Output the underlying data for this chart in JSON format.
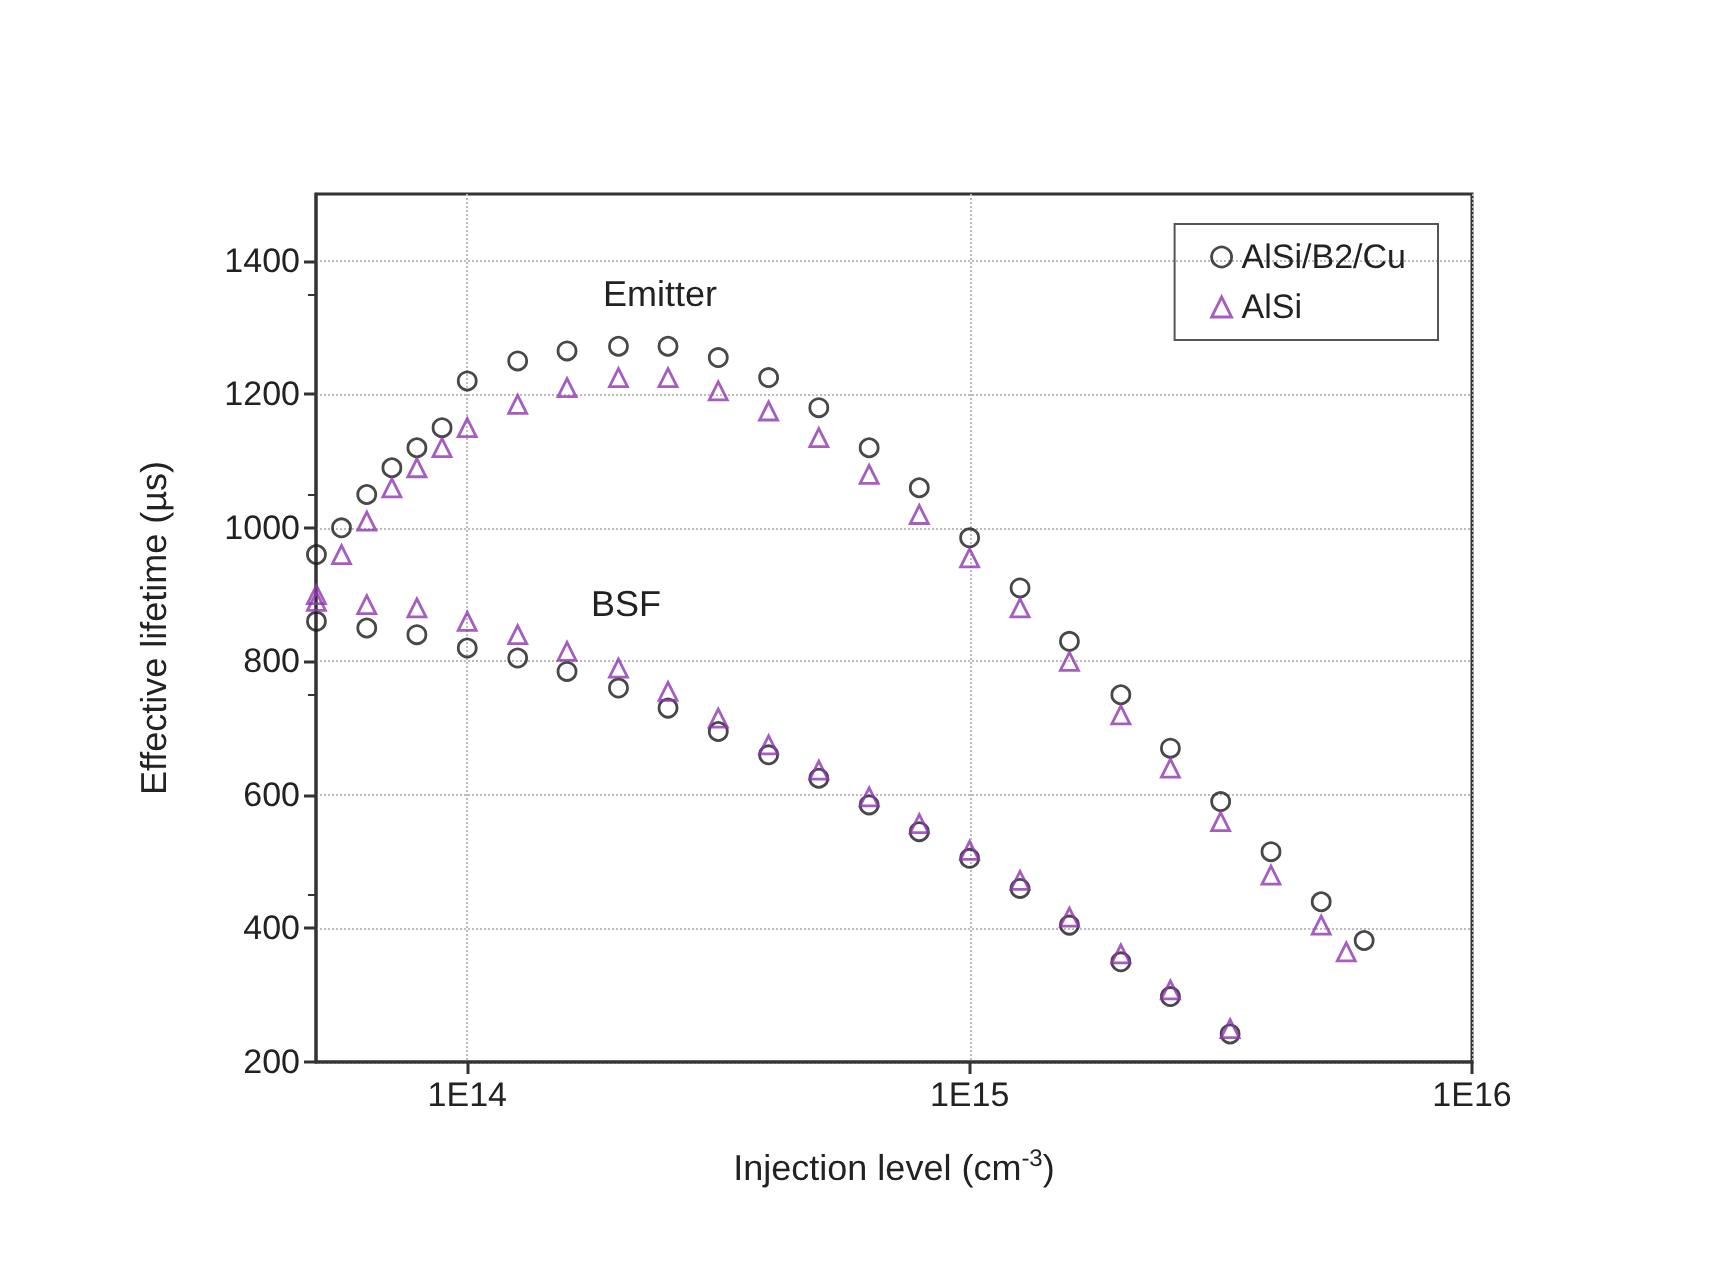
{
  "chart_data": {
    "type": "scatter",
    "xlabel": "Injection level (cm$^{-3}$)",
    "ylabel": "Effective lifetime (µs)",
    "log": "x",
    "xlim": [
      50000000000000.0,
      1e+16
    ],
    "xticks": [
      {
        "value": 100000000000000.0,
        "label": "1E14"
      },
      {
        "value": 1000000000000000.0,
        "label": "1E15"
      },
      {
        "value": 1e+16,
        "label": "1E16"
      }
    ],
    "ylim": [
      200,
      1500
    ],
    "yticks": [
      200,
      400,
      600,
      800,
      1000,
      1200,
      1400
    ],
    "grid": true,
    "legend": "top right",
    "annotations": [
      "Emitter",
      "BSF"
    ],
    "series": [
      {
        "name": "AlSi/B2/Cu",
        "color": "#1a1a1a",
        "marker": "circle",
        "x": [
          50100000000000.0,
          56200000000000.0,
          63100000000000.0,
          70800000000000.0,
          79400000000000.0,
          89100000000000.0,
          100000000000000.0,
          126000000000000.0,
          158000000000000.0,
          200000000000000.0,
          251000000000000.0,
          316000000000000.0,
          398000000000000.0,
          501000000000000.0,
          631000000000000.0,
          794000000000000.0,
          1000000000000000.0,
          1260000000000000.0,
          1580000000000000.0,
          2000000000000000.0,
          2510000000000000.0,
          3160000000000000.0,
          3980000000000000.0,
          5010000000000000.0,
          6100000000000000.0
        ],
        "values": [
          960,
          1000,
          1050,
          1090,
          1120,
          1150,
          1220,
          1250,
          1265,
          1272,
          1272,
          1255,
          1225,
          1180,
          1120,
          1060,
          985,
          910,
          830,
          750,
          670,
          590,
          515,
          440,
          382
        ]
      },
      {
        "name": "AlSi",
        "color": "#8e35b0",
        "marker": "triangle",
        "x": [
          50100000000000.0,
          56200000000000.0,
          63100000000000.0,
          70800000000000.0,
          79400000000000.0,
          89100000000000.0,
          100000000000000.0,
          126000000000000.0,
          158000000000000.0,
          200000000000000.0,
          251000000000000.0,
          316000000000000.0,
          398000000000000.0,
          501000000000000.0,
          631000000000000.0,
          794000000000000.0,
          1000000000000000.0,
          1260000000000000.0,
          1580000000000000.0,
          2000000000000000.0,
          2510000000000000.0,
          3160000000000000.0,
          3980000000000000.0,
          5010000000000000.0,
          5620000000000000.0
        ],
        "values": [
          900,
          960,
          1010,
          1060,
          1090,
          1120,
          1150,
          1185,
          1210,
          1225,
          1225,
          1205,
          1175,
          1135,
          1080,
          1020,
          955,
          880,
          800,
          720,
          640,
          560,
          480,
          405,
          365
        ]
      },
      {
        "color": "#1a1a1a",
        "marker": "circle",
        "x": [
          50100000000000.0,
          63100000000000.0,
          79400000000000.0,
          100000000000000.0,
          126000000000000.0,
          158000000000000.0,
          200000000000000.0,
          251000000000000.0,
          316000000000000.0,
          398000000000000.0,
          501000000000000.0,
          631000000000000.0,
          794000000000000.0,
          1000000000000000.0,
          1260000000000000.0,
          1580000000000000.0,
          2000000000000000.0,
          2510000000000000.0,
          3300000000000000.0
        ],
        "values": [
          860,
          850,
          840,
          820,
          805,
          785,
          760,
          730,
          695,
          660,
          625,
          585,
          545,
          505,
          460,
          405,
          350,
          298,
          242
        ]
      },
      {
        "color": "#8e35b0",
        "marker": "triangle",
        "x": [
          50100000000000.0,
          63100000000000.0,
          79400000000000.0,
          100000000000000.0,
          126000000000000.0,
          158000000000000.0,
          200000000000000.0,
          251000000000000.0,
          316000000000000.0,
          398000000000000.0,
          501000000000000.0,
          631000000000000.0,
          794000000000000.0,
          1000000000000000.0,
          1260000000000000.0,
          1580000000000000.0,
          2000000000000000.0,
          2510000000000000.0,
          3300000000000000.0
        ],
        "values": [
          890,
          885,
          880,
          860,
          840,
          815,
          790,
          755,
          715,
          675,
          637,
          597,
          557,
          517,
          472,
          417,
          362,
          308,
          250
        ]
      }
    ]
  }
}
